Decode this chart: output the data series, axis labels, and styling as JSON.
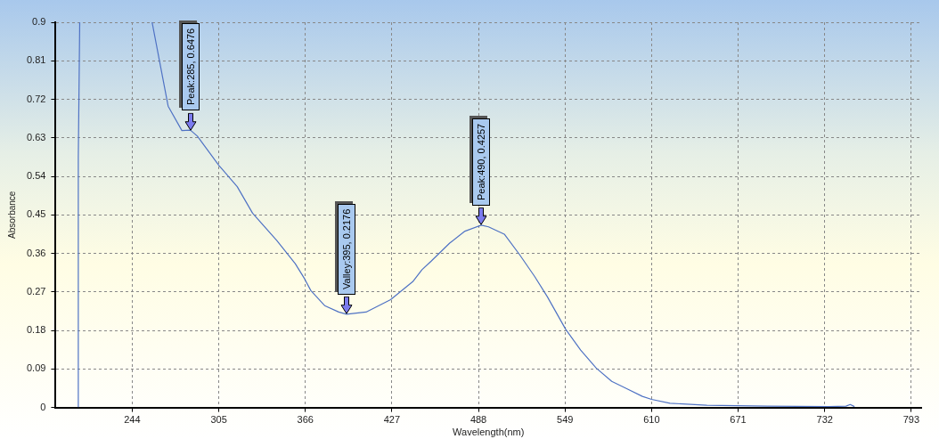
{
  "chart_data": {
    "type": "line",
    "xlabel": "Wavelength(nm)",
    "ylabel": "Absorbance",
    "series": [
      {
        "color": "#4f72c4",
        "x": [
          206,
          206,
          207
        ],
        "values": [
          0,
          0.585,
          0.9
        ]
      },
      {
        "color": "#4f72c4",
        "x": [
          258,
          262.1,
          269.3,
          279,
          285,
          289.9,
          305,
          318,
          328.8,
          345.9,
          358.9,
          365.4,
          369.9,
          379.6,
          389.5,
          395,
          408.8,
          426.1,
          441.7,
          448.2,
          454.7,
          467.7,
          478.5,
          490,
          495.1,
          506.2,
          517,
          527.6,
          536.5,
          549.4,
          560,
          571,
          581.9,
          592.5,
          603.5,
          610,
          623,
          649,
          692,
          735,
          747,
          750,
          753
        ],
        "values": [
          0.9,
          0.829,
          0.704,
          0.647,
          0.648,
          0.634,
          0.566,
          0.516,
          0.454,
          0.39,
          0.336,
          0.301,
          0.273,
          0.238,
          0.223,
          0.218,
          0.223,
          0.252,
          0.294,
          0.322,
          0.342,
          0.384,
          0.412,
          0.426,
          0.422,
          0.405,
          0.357,
          0.306,
          0.259,
          0.183,
          0.134,
          0.092,
          0.061,
          0.044,
          0.026,
          0.019,
          0.01,
          0.005,
          0.003,
          0.002,
          0.003,
          0.007,
          0.002
        ]
      }
    ],
    "xlim": [
      190,
      800
    ],
    "xticks": [
      244,
      305,
      366,
      427,
      488,
      549,
      610,
      671,
      732,
      793
    ],
    "ylim": [
      0,
      0.9
    ],
    "yticks": [
      0,
      0.09,
      0.18,
      0.27,
      0.36,
      0.45,
      0.54,
      0.63,
      0.72,
      0.81,
      0.9
    ],
    "grid": true,
    "marker": "none",
    "line_style": "solid",
    "annotations": [
      {
        "text": "Peak:285, 0.6476",
        "x": 285,
        "y": 0.6476
      },
      {
        "text": "Valley:395, 0.2176",
        "x": 395,
        "y": 0.2176
      },
      {
        "text": "Peak:490, 0.4257",
        "x": 490,
        "y": 0.4257
      }
    ]
  }
}
